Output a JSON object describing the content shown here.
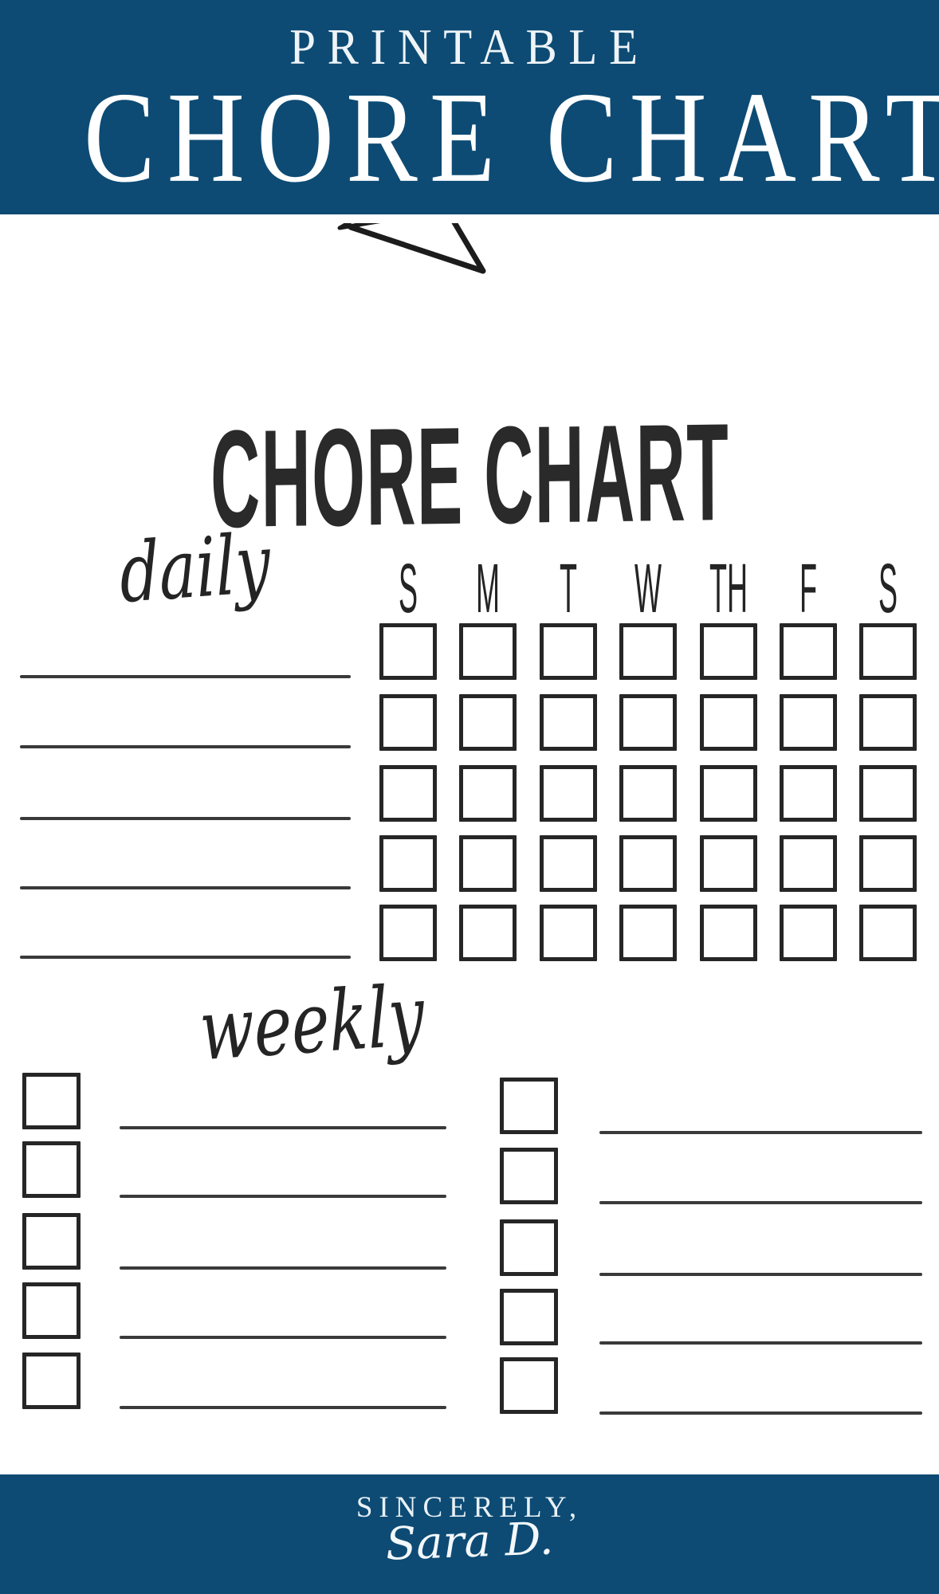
{
  "banner": {
    "kicker": "PRINTABLE",
    "title": "CHORE CHART"
  },
  "ribbon": {
    "title": "CHORE CHART",
    "shape": "hand-drawn-arched-banner"
  },
  "daily": {
    "label": "daily",
    "days": [
      "S",
      "M",
      "T",
      "W",
      "TH",
      "F",
      "S"
    ],
    "row_count": 5,
    "rows": [
      "",
      "",
      "",
      "",
      ""
    ]
  },
  "weekly": {
    "label": "weekly",
    "columns": [
      {
        "row_count": 5,
        "rows": [
          "",
          "",
          "",
          "",
          ""
        ]
      },
      {
        "row_count": 5,
        "rows": [
          "",
          "",
          "",
          "",
          ""
        ]
      }
    ]
  },
  "footer": {
    "closing": "SINCERELY,",
    "signature": "Sara D."
  },
  "colors": {
    "navy": "#0d4b74",
    "ink": "#262626",
    "line": "#3a3a3a",
    "paper": "#ffffff"
  }
}
